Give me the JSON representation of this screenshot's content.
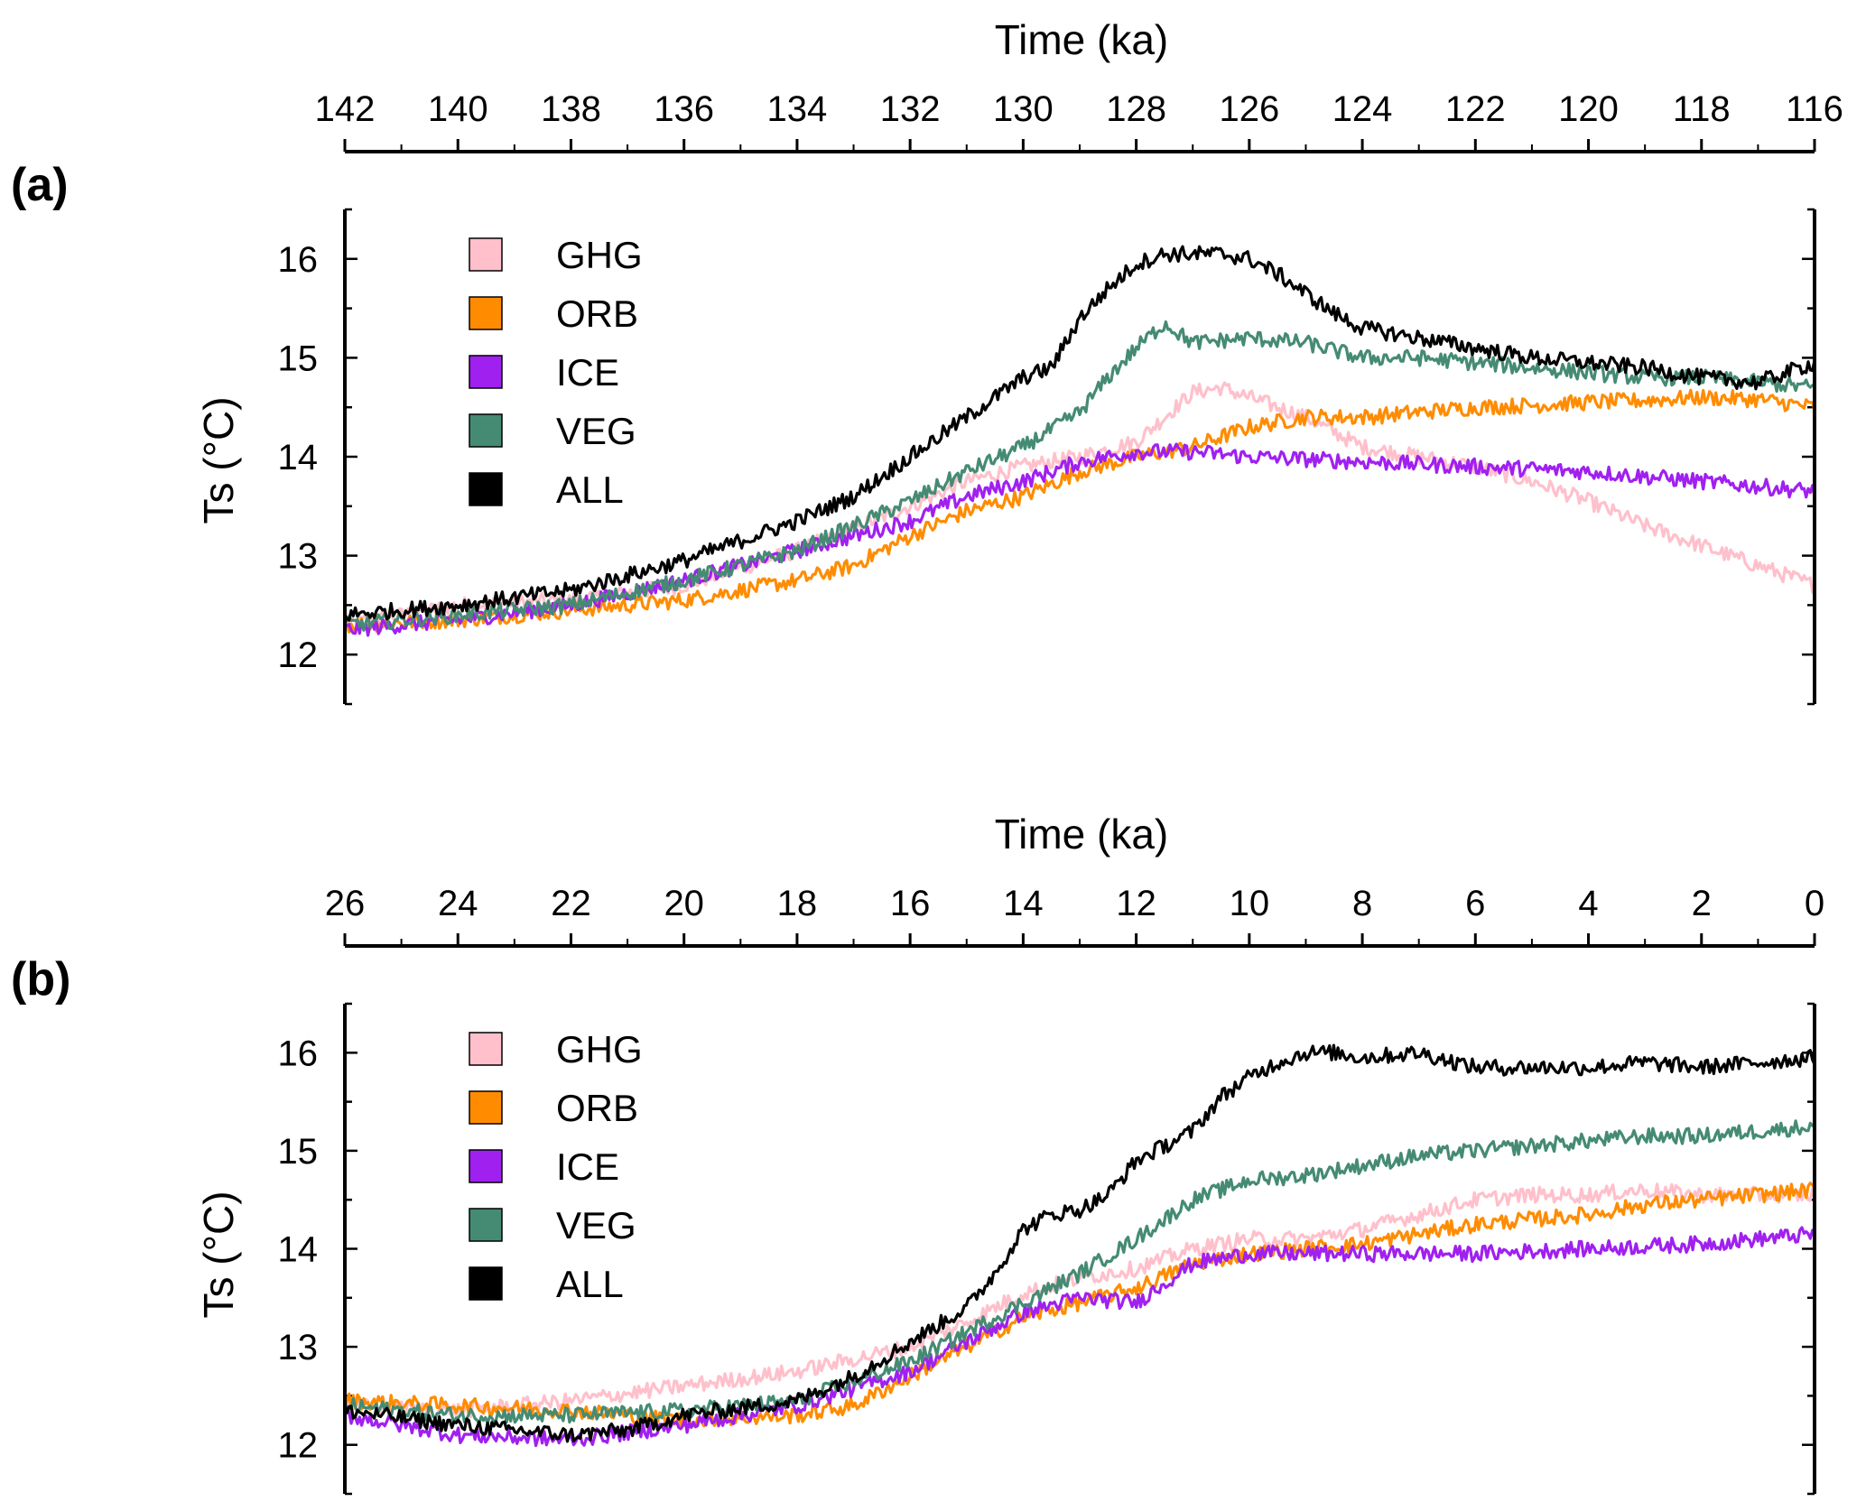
{
  "chart_data": [
    {
      "type": "line",
      "panel_label": "(a)",
      "xlabel": "Time (ka)",
      "ylabel": "Ts (°C)",
      "xlim": [
        142,
        116
      ],
      "ylim": [
        11.5,
        16.5
      ],
      "x_ticks": [
        142,
        140,
        138,
        136,
        134,
        132,
        130,
        128,
        126,
        124,
        122,
        120,
        118,
        116
      ],
      "x_tick_labels": [
        "142",
        "140",
        "138",
        "136",
        "134",
        "132",
        "130",
        "128",
        "126",
        "124",
        "122",
        "120",
        "118",
        "116"
      ],
      "y_ticks": [
        12,
        13,
        14,
        15,
        16
      ],
      "y_tick_labels": [
        "12",
        "13",
        "14",
        "15",
        "16"
      ],
      "y_minor_step": 0.5,
      "x_axis_position": "top",
      "legend_position": "top-left",
      "series": [
        {
          "name": "GHG",
          "color": "#ffc0cb",
          "x": [
            142,
            140,
            138,
            136,
            134,
            132,
            131,
            130,
            129,
            128,
            127.5,
            127,
            126.5,
            126,
            125,
            124,
            123,
            122,
            121,
            120,
            119,
            118,
            117,
            116
          ],
          "y": [
            12.3,
            12.5,
            12.55,
            12.7,
            13.05,
            13.5,
            13.75,
            13.9,
            14.0,
            14.15,
            14.4,
            14.65,
            14.7,
            14.6,
            14.4,
            14.1,
            14.0,
            13.9,
            13.75,
            13.55,
            13.3,
            13.1,
            12.9,
            12.7
          ]
        },
        {
          "name": "ORB",
          "color": "#ff8c00",
          "x": [
            142,
            140,
            138,
            136,
            134,
            133,
            132,
            131,
            130,
            129,
            128,
            127,
            126,
            125,
            124,
            123,
            122,
            121,
            120,
            119,
            118,
            117,
            116
          ],
          "y": [
            12.3,
            12.35,
            12.45,
            12.55,
            12.75,
            12.9,
            13.2,
            13.45,
            13.6,
            13.85,
            14.0,
            14.1,
            14.3,
            14.4,
            14.4,
            14.45,
            14.5,
            14.52,
            14.55,
            14.57,
            14.6,
            14.58,
            14.5
          ]
        },
        {
          "name": "ICE",
          "color": "#a020f0",
          "x": [
            142,
            140,
            138,
            136,
            134,
            132,
            131,
            130,
            129,
            128,
            127,
            126,
            124,
            122,
            120,
            118,
            116
          ],
          "y": [
            12.25,
            12.35,
            12.5,
            12.75,
            13.05,
            13.35,
            13.6,
            13.75,
            13.95,
            14.05,
            14.05,
            14.0,
            13.95,
            13.9,
            13.85,
            13.75,
            13.65
          ]
        },
        {
          "name": "VEG",
          "color": "#458b74",
          "x": [
            142,
            140,
            138,
            136,
            134,
            132,
            131,
            130,
            129,
            128.5,
            128,
            127.5,
            127,
            126,
            125,
            124,
            123,
            122,
            121,
            120,
            119,
            118,
            117,
            116
          ],
          "y": [
            12.3,
            12.4,
            12.5,
            12.75,
            13.05,
            13.55,
            13.85,
            14.1,
            14.45,
            14.8,
            15.1,
            15.35,
            15.15,
            15.2,
            15.15,
            15.0,
            15.0,
            14.95,
            14.9,
            14.85,
            14.8,
            14.8,
            14.75,
            14.7
          ]
        },
        {
          "name": "ALL",
          "color": "#000000",
          "x": [
            142,
            140,
            138,
            136,
            134,
            133,
            132,
            131,
            130,
            129.5,
            129,
            128.5,
            128,
            127.5,
            127,
            126.5,
            126,
            125.5,
            125,
            124.5,
            124,
            123,
            122,
            121,
            120,
            119,
            118,
            117,
            116
          ],
          "y": [
            12.4,
            12.5,
            12.65,
            12.95,
            13.35,
            13.6,
            14.0,
            14.4,
            14.8,
            14.9,
            15.4,
            15.7,
            15.95,
            16.05,
            16.05,
            16.05,
            16.0,
            15.85,
            15.65,
            15.45,
            15.3,
            15.2,
            15.1,
            15.0,
            14.95,
            14.9,
            14.8,
            14.75,
            14.95
          ]
        }
      ]
    },
    {
      "type": "line",
      "panel_label": "(b)",
      "xlabel": "Time (ka)",
      "ylabel": "Ts (°C)",
      "xlim": [
        26,
        0
      ],
      "ylim": [
        11.5,
        16.5
      ],
      "x_ticks": [
        26,
        24,
        22,
        20,
        18,
        16,
        14,
        12,
        10,
        8,
        6,
        4,
        2,
        0
      ],
      "x_tick_labels": [
        "26",
        "24",
        "22",
        "20",
        "18",
        "16",
        "14",
        "12",
        "10",
        "8",
        "6",
        "4",
        "2",
        "0"
      ],
      "y_ticks": [
        12,
        13,
        14,
        15,
        16
      ],
      "y_tick_labels": [
        "12",
        "13",
        "14",
        "15",
        "16"
      ],
      "y_minor_step": 0.5,
      "x_axis_position": "top",
      "legend_position": "top-left",
      "series": [
        {
          "name": "GHG",
          "color": "#ffc0cb",
          "x": [
            26,
            24,
            22,
            20,
            18,
            16,
            15,
            14,
            13,
            12,
            11,
            10,
            9,
            8,
            7,
            6,
            5,
            4,
            3,
            2,
            1,
            0
          ],
          "y": [
            12.4,
            12.35,
            12.45,
            12.6,
            12.75,
            13.0,
            13.25,
            13.55,
            13.7,
            13.8,
            14.0,
            14.1,
            14.1,
            14.2,
            14.35,
            14.5,
            14.55,
            14.55,
            14.6,
            14.55,
            14.55,
            14.55
          ]
        },
        {
          "name": "ORB",
          "color": "#ff8c00",
          "x": [
            26,
            24,
            22,
            20,
            18,
            17,
            16,
            15,
            14,
            13,
            12,
            11,
            10,
            9,
            8,
            7,
            6,
            5,
            4,
            3,
            2,
            1,
            0
          ],
          "y": [
            12.45,
            12.4,
            12.35,
            12.25,
            12.3,
            12.4,
            12.7,
            13.0,
            13.3,
            13.45,
            13.6,
            13.85,
            13.95,
            14.0,
            14.05,
            14.15,
            14.25,
            14.3,
            14.35,
            14.45,
            14.5,
            14.55,
            14.6
          ]
        },
        {
          "name": "ICE",
          "color": "#a020f0",
          "x": [
            26,
            24,
            22,
            20,
            18,
            16,
            15,
            14,
            13,
            12,
            11,
            10,
            9,
            8,
            6,
            4,
            2,
            0
          ],
          "y": [
            12.3,
            12.1,
            12.05,
            12.2,
            12.4,
            12.75,
            13.05,
            13.35,
            13.5,
            13.45,
            13.85,
            13.95,
            13.95,
            13.95,
            13.95,
            14.0,
            14.05,
            14.15
          ]
        },
        {
          "name": "VEG",
          "color": "#458b74",
          "x": [
            26,
            24,
            22,
            20,
            18,
            16,
            15,
            14,
            13,
            12,
            11,
            10,
            9,
            8,
            7,
            6,
            5,
            4,
            3,
            2,
            1,
            0
          ],
          "y": [
            12.4,
            12.3,
            12.3,
            12.35,
            12.45,
            12.85,
            13.15,
            13.45,
            13.75,
            14.1,
            14.5,
            14.7,
            14.75,
            14.85,
            14.95,
            15.0,
            15.05,
            15.1,
            15.15,
            15.15,
            15.2,
            15.25
          ]
        },
        {
          "name": "ALL",
          "color": "#000000",
          "x": [
            26,
            24,
            22,
            21,
            20,
            18,
            17,
            16,
            15,
            14.5,
            14,
            13.5,
            13,
            12.5,
            12,
            11.5,
            11,
            10.5,
            10,
            9.5,
            9,
            8.5,
            8,
            7,
            6,
            5,
            4,
            3,
            2,
            1,
            0
          ],
          "y": [
            12.35,
            12.2,
            12.1,
            12.15,
            12.3,
            12.45,
            12.7,
            13.05,
            13.4,
            13.75,
            14.2,
            14.35,
            14.4,
            14.55,
            14.9,
            15.05,
            15.2,
            15.55,
            15.75,
            15.9,
            16.0,
            16.0,
            15.95,
            16.0,
            15.85,
            15.85,
            15.85,
            15.9,
            15.85,
            15.9,
            15.95
          ]
        }
      ]
    }
  ]
}
